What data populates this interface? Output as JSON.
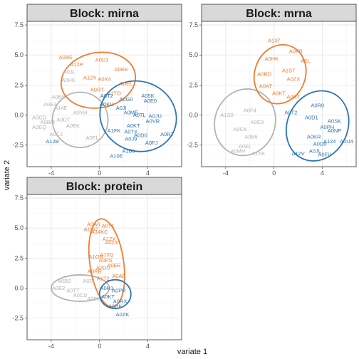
{
  "chart_data": {
    "type": "scatter",
    "xlabel": "variate 1",
    "ylabel": "variate 2",
    "xlim": [
      -6,
      6.8
    ],
    "ylim": [
      -4.3,
      7.8
    ],
    "xticks": [
      -4,
      0,
      4
    ],
    "yticks": [
      -2.5,
      0.0,
      2.5,
      5.0,
      7.5
    ],
    "ytick_labels": [
      "-2.5",
      "0.0",
      "2.5",
      "5.0",
      "7.5"
    ],
    "grid": true,
    "colors": {
      "grey": "#b3b3b3",
      "orange": "#ed7d31",
      "blue": "#2e75b6"
    },
    "panels": [
      {
        "title": "Block: mirna",
        "ellipses": [
          {
            "group": "grey",
            "cx": -1.6,
            "cy": -0.4,
            "rx": 2.3,
            "ry": 2.3,
            "angle": 0
          },
          {
            "group": "orange",
            "cx": -0.1,
            "cy": 2.9,
            "rx": 3.1,
            "ry": 2.3,
            "angle": -10
          },
          {
            "group": "blue",
            "cx": 3.2,
            "cy": -0.1,
            "rx": 3.2,
            "ry": 2.9,
            "angle": 20
          }
        ],
        "points": [
          {
            "label": "A09G",
            "x": -2.8,
            "y": 4.8,
            "group": "orange"
          },
          {
            "label": "A0D1",
            "x": 0.2,
            "y": 4.6,
            "group": "orange"
          },
          {
            "label": "A0EE",
            "x": 1.8,
            "y": 3.8,
            "group": "orange"
          },
          {
            "label": "A12P",
            "x": -1.9,
            "y": 4.2,
            "group": "orange"
          },
          {
            "label": "A0EL",
            "x": 2.2,
            "y": 2.6,
            "group": "orange"
          },
          {
            "label": "A12X",
            "x": -0.8,
            "y": 3.1,
            "group": "orange"
          },
          {
            "label": "A0X4",
            "x": 0.4,
            "y": 3.0,
            "group": "orange"
          },
          {
            "label": "A0RT",
            "x": -0.2,
            "y": 2.1,
            "group": "orange"
          },
          {
            "label": "A1TO",
            "x": 1.2,
            "y": 1.8,
            "group": "orange"
          },
          {
            "label": "A03L",
            "x": -2.5,
            "y": 3.6,
            "group": "grey"
          },
          {
            "label": "A0H6",
            "x": -2.6,
            "y": 2.9,
            "group": "grey"
          },
          {
            "label": "A0BS",
            "x": -3.4,
            "y": 1.5,
            "group": "grey"
          },
          {
            "label": "A0E3",
            "x": -4.1,
            "y": 0.9,
            "group": "grey"
          },
          {
            "label": "A14E",
            "x": -3.2,
            "y": 0.6,
            "group": "grey"
          },
          {
            "label": "A0CD",
            "x": -5.0,
            "y": -0.2,
            "group": "grey"
          },
          {
            "label": "A0BM",
            "x": -4.3,
            "y": -0.6,
            "group": "grey"
          },
          {
            "label": "A0EQ",
            "x": -5.0,
            "y": -1.0,
            "group": "grey"
          },
          {
            "label": "A0DT",
            "x": -3.0,
            "y": -0.4,
            "group": "grey"
          },
          {
            "label": "A0EK",
            "x": -2.2,
            "y": -0.9,
            "group": "grey"
          },
          {
            "label": "A0CJ",
            "x": -3.6,
            "y": -1.6,
            "group": "grey"
          },
          {
            "label": "A0XH",
            "x": -1.6,
            "y": 0.2,
            "group": "grey"
          },
          {
            "label": "A0FL",
            "x": -0.6,
            "y": -1.9,
            "group": "grey"
          },
          {
            "label": "A12B",
            "x": -3.9,
            "y": -2.2,
            "group": "blue"
          },
          {
            "label": "A0T2",
            "x": 0.6,
            "y": 1.6,
            "group": "blue"
          },
          {
            "label": "A0G0",
            "x": 2.2,
            "y": 1.3,
            "group": "blue"
          },
          {
            "label": "A0E0",
            "x": 4.2,
            "y": 1.2,
            "group": "blue"
          },
          {
            "label": "A05K",
            "x": 4.0,
            "y": 1.6,
            "group": "blue"
          },
          {
            "label": "A0KU",
            "x": 0.6,
            "y": 0.9,
            "group": "blue"
          },
          {
            "label": "A0JI",
            "x": 1.8,
            "y": 0.6,
            "group": "blue"
          },
          {
            "label": "A0ME",
            "x": 2.6,
            "y": 0.2,
            "group": "blue"
          },
          {
            "label": "A0TL",
            "x": 3.3,
            "y": 0.0,
            "group": "blue"
          },
          {
            "label": "A0JU",
            "x": 4.6,
            "y": -0.1,
            "group": "blue"
          },
          {
            "label": "A0VR",
            "x": 4.4,
            "y": -0.5,
            "group": "blue"
          },
          {
            "label": "A0KT",
            "x": 2.8,
            "y": -0.9,
            "group": "blue"
          },
          {
            "label": "A0D0",
            "x": 3.4,
            "y": -1.7,
            "group": "blue"
          },
          {
            "label": "A0RT",
            "x": 5.6,
            "y": -1.6,
            "group": "blue"
          },
          {
            "label": "A0TX",
            "x": 2.6,
            "y": -1.4,
            "group": "blue"
          },
          {
            "label": "A1FK",
            "x": 1.2,
            "y": -1.3,
            "group": "blue"
          },
          {
            "label": "A0J9",
            "x": 2.6,
            "y": -2.0,
            "group": "blue"
          },
          {
            "label": "A0FJ",
            "x": 4.3,
            "y": -2.3,
            "group": "blue"
          },
          {
            "label": "A1B6",
            "x": 2.4,
            "y": -3.0,
            "group": "blue"
          },
          {
            "label": "A10E",
            "x": 1.4,
            "y": -3.4,
            "group": "blue"
          }
        ]
      },
      {
        "title": "Block: mrna",
        "ellipses": [
          {
            "group": "grey",
            "cx": -2.4,
            "cy": -0.6,
            "rx": 2.5,
            "ry": 2.8,
            "angle": 20
          },
          {
            "group": "orange",
            "cx": 0.5,
            "cy": 3.4,
            "rx": 2.1,
            "ry": 2.5,
            "angle": 20
          },
          {
            "group": "blue",
            "cx": 3.6,
            "cy": -0.9,
            "rx": 2.5,
            "ry": 3.0,
            "angle": 25
          }
        ],
        "points": [
          {
            "label": "A137",
            "x": 0.0,
            "y": 6.2,
            "group": "orange"
          },
          {
            "label": "A0FB",
            "x": 1.8,
            "y": 5.3,
            "group": "orange"
          },
          {
            "label": "A0HK",
            "x": -0.2,
            "y": 4.7,
            "group": "orange"
          },
          {
            "label": "A2L",
            "x": 2.6,
            "y": 4.5,
            "group": "orange"
          },
          {
            "label": "A1S7",
            "x": 1.2,
            "y": 3.7,
            "group": "orange"
          },
          {
            "label": "A0RD",
            "x": -0.8,
            "y": 3.4,
            "group": "orange"
          },
          {
            "label": "A0ZX",
            "x": 1.6,
            "y": 3.0,
            "group": "orange"
          },
          {
            "label": "A0AT",
            "x": -0.7,
            "y": 2.4,
            "group": "orange"
          },
          {
            "label": "A0KT",
            "x": 0.4,
            "y": 1.8,
            "group": "orange"
          },
          {
            "label": "A0RT",
            "x": 1.6,
            "y": 1.5,
            "group": "orange"
          },
          {
            "label": "A1S0",
            "x": -3.9,
            "y": 0.0,
            "group": "grey"
          },
          {
            "label": "A0F4",
            "x": -2.0,
            "y": 0.4,
            "group": "grey"
          },
          {
            "label": "A0E3",
            "x": -1.4,
            "y": -0.6,
            "group": "grey"
          },
          {
            "label": "A0CK",
            "x": -2.8,
            "y": -1.2,
            "group": "grey"
          },
          {
            "label": "A0B6",
            "x": -1.9,
            "y": -1.8,
            "group": "grey"
          },
          {
            "label": "A0EL",
            "x": -2.4,
            "y": -2.6,
            "group": "grey"
          },
          {
            "label": "A1XK",
            "x": -1.3,
            "y": -3.2,
            "group": "grey"
          },
          {
            "label": "A0MH",
            "x": -3.0,
            "y": -3.0,
            "group": "grey"
          },
          {
            "label": "A0T2",
            "x": 1.4,
            "y": 0.2,
            "group": "blue"
          },
          {
            "label": "A0R0",
            "x": 3.6,
            "y": 0.8,
            "group": "blue"
          },
          {
            "label": "A0D1",
            "x": 3.1,
            "y": -0.2,
            "group": "blue"
          },
          {
            "label": "A0SK",
            "x": 5.0,
            "y": -0.5,
            "group": "blue"
          },
          {
            "label": "A0PH",
            "x": 4.4,
            "y": -1.0,
            "group": "blue"
          },
          {
            "label": "A0NP",
            "x": 5.0,
            "y": -1.3,
            "group": "blue"
          },
          {
            "label": "A0KR",
            "x": 3.3,
            "y": -1.8,
            "group": "blue"
          },
          {
            "label": "A124",
            "x": 4.6,
            "y": -2.2,
            "group": "blue"
          },
          {
            "label": "A0U4",
            "x": 6.0,
            "y": -2.2,
            "group": "blue"
          },
          {
            "label": "A0D0",
            "x": 3.8,
            "y": -2.4,
            "group": "blue"
          },
          {
            "label": "A0JL",
            "x": 3.4,
            "y": -3.0,
            "group": "blue"
          },
          {
            "label": "A12V",
            "x": 2.0,
            "y": -3.2,
            "group": "blue"
          },
          {
            "label": "A0FU",
            "x": 4.2,
            "y": -3.3,
            "group": "blue"
          }
        ]
      },
      {
        "title": "Block: protein",
        "ellipses": [
          {
            "group": "grey",
            "cx": -1.6,
            "cy": 0.0,
            "rx": 2.4,
            "ry": 1.1,
            "angle": 0
          },
          {
            "group": "orange",
            "cx": 0.6,
            "cy": 2.1,
            "rx": 1.4,
            "ry": 3.7,
            "angle": -8
          },
          {
            "group": "blue",
            "cx": 1.3,
            "cy": -0.5,
            "rx": 1.3,
            "ry": 1.2,
            "angle": 0
          }
        ],
        "points": [
          {
            "label": "A0A6",
            "x": -0.5,
            "y": 5.3,
            "group": "orange"
          },
          {
            "label": "A0T1",
            "x": 0.7,
            "y": 5.2,
            "group": "orange"
          },
          {
            "label": "A1W7",
            "x": -0.7,
            "y": 4.9,
            "group": "orange"
          },
          {
            "label": "A14KC",
            "x": 0.0,
            "y": 4.7,
            "group": "orange"
          },
          {
            "label": "A1ZX",
            "x": 0.8,
            "y": 4.1,
            "group": "orange"
          },
          {
            "label": "A0ZX",
            "x": 1.0,
            "y": 3.8,
            "group": "orange"
          },
          {
            "label": "A10Q",
            "x": 0.6,
            "y": 2.8,
            "group": "orange"
          },
          {
            "label": "A1GR",
            "x": -0.3,
            "y": 2.6,
            "group": "orange"
          },
          {
            "label": "A0PS",
            "x": 0.5,
            "y": 2.3,
            "group": "orange"
          },
          {
            "label": "A0EE",
            "x": 1.2,
            "y": 1.9,
            "group": "orange"
          },
          {
            "label": "A0DU",
            "x": 0.3,
            "y": 1.7,
            "group": "orange"
          },
          {
            "label": "A0RR",
            "x": -0.4,
            "y": 1.4,
            "group": "orange"
          },
          {
            "label": "A0AB",
            "x": 1.6,
            "y": 1.0,
            "group": "orange"
          },
          {
            "label": "A1T2",
            "x": 0.3,
            "y": 0.8,
            "group": "orange"
          },
          {
            "label": "A0BS",
            "x": -2.9,
            "y": 0.6,
            "group": "grey"
          },
          {
            "label": "A0SI",
            "x": -0.9,
            "y": 0.6,
            "group": "grey"
          },
          {
            "label": "A0E2",
            "x": -3.4,
            "y": 0.0,
            "group": "grey"
          },
          {
            "label": "A0TT",
            "x": -2.2,
            "y": -0.2,
            "group": "grey"
          },
          {
            "label": "A0CD",
            "x": -1.6,
            "y": -0.6,
            "group": "grey"
          },
          {
            "label": "A0FL",
            "x": -0.5,
            "y": -0.9,
            "group": "grey"
          },
          {
            "label": "A0H1",
            "x": 0.6,
            "y": 0.0,
            "group": "blue"
          },
          {
            "label": "A0PR",
            "x": 1.6,
            "y": -0.2,
            "group": "blue"
          },
          {
            "label": "A0KT",
            "x": 0.7,
            "y": -0.7,
            "group": "blue"
          },
          {
            "label": "A0RX",
            "x": 1.7,
            "y": -1.1,
            "group": "blue"
          },
          {
            "label": "A0DK",
            "x": 1.3,
            "y": -1.5,
            "group": "blue"
          },
          {
            "label": "A0ZK",
            "x": 1.9,
            "y": -2.2,
            "group": "blue"
          }
        ]
      }
    ]
  }
}
